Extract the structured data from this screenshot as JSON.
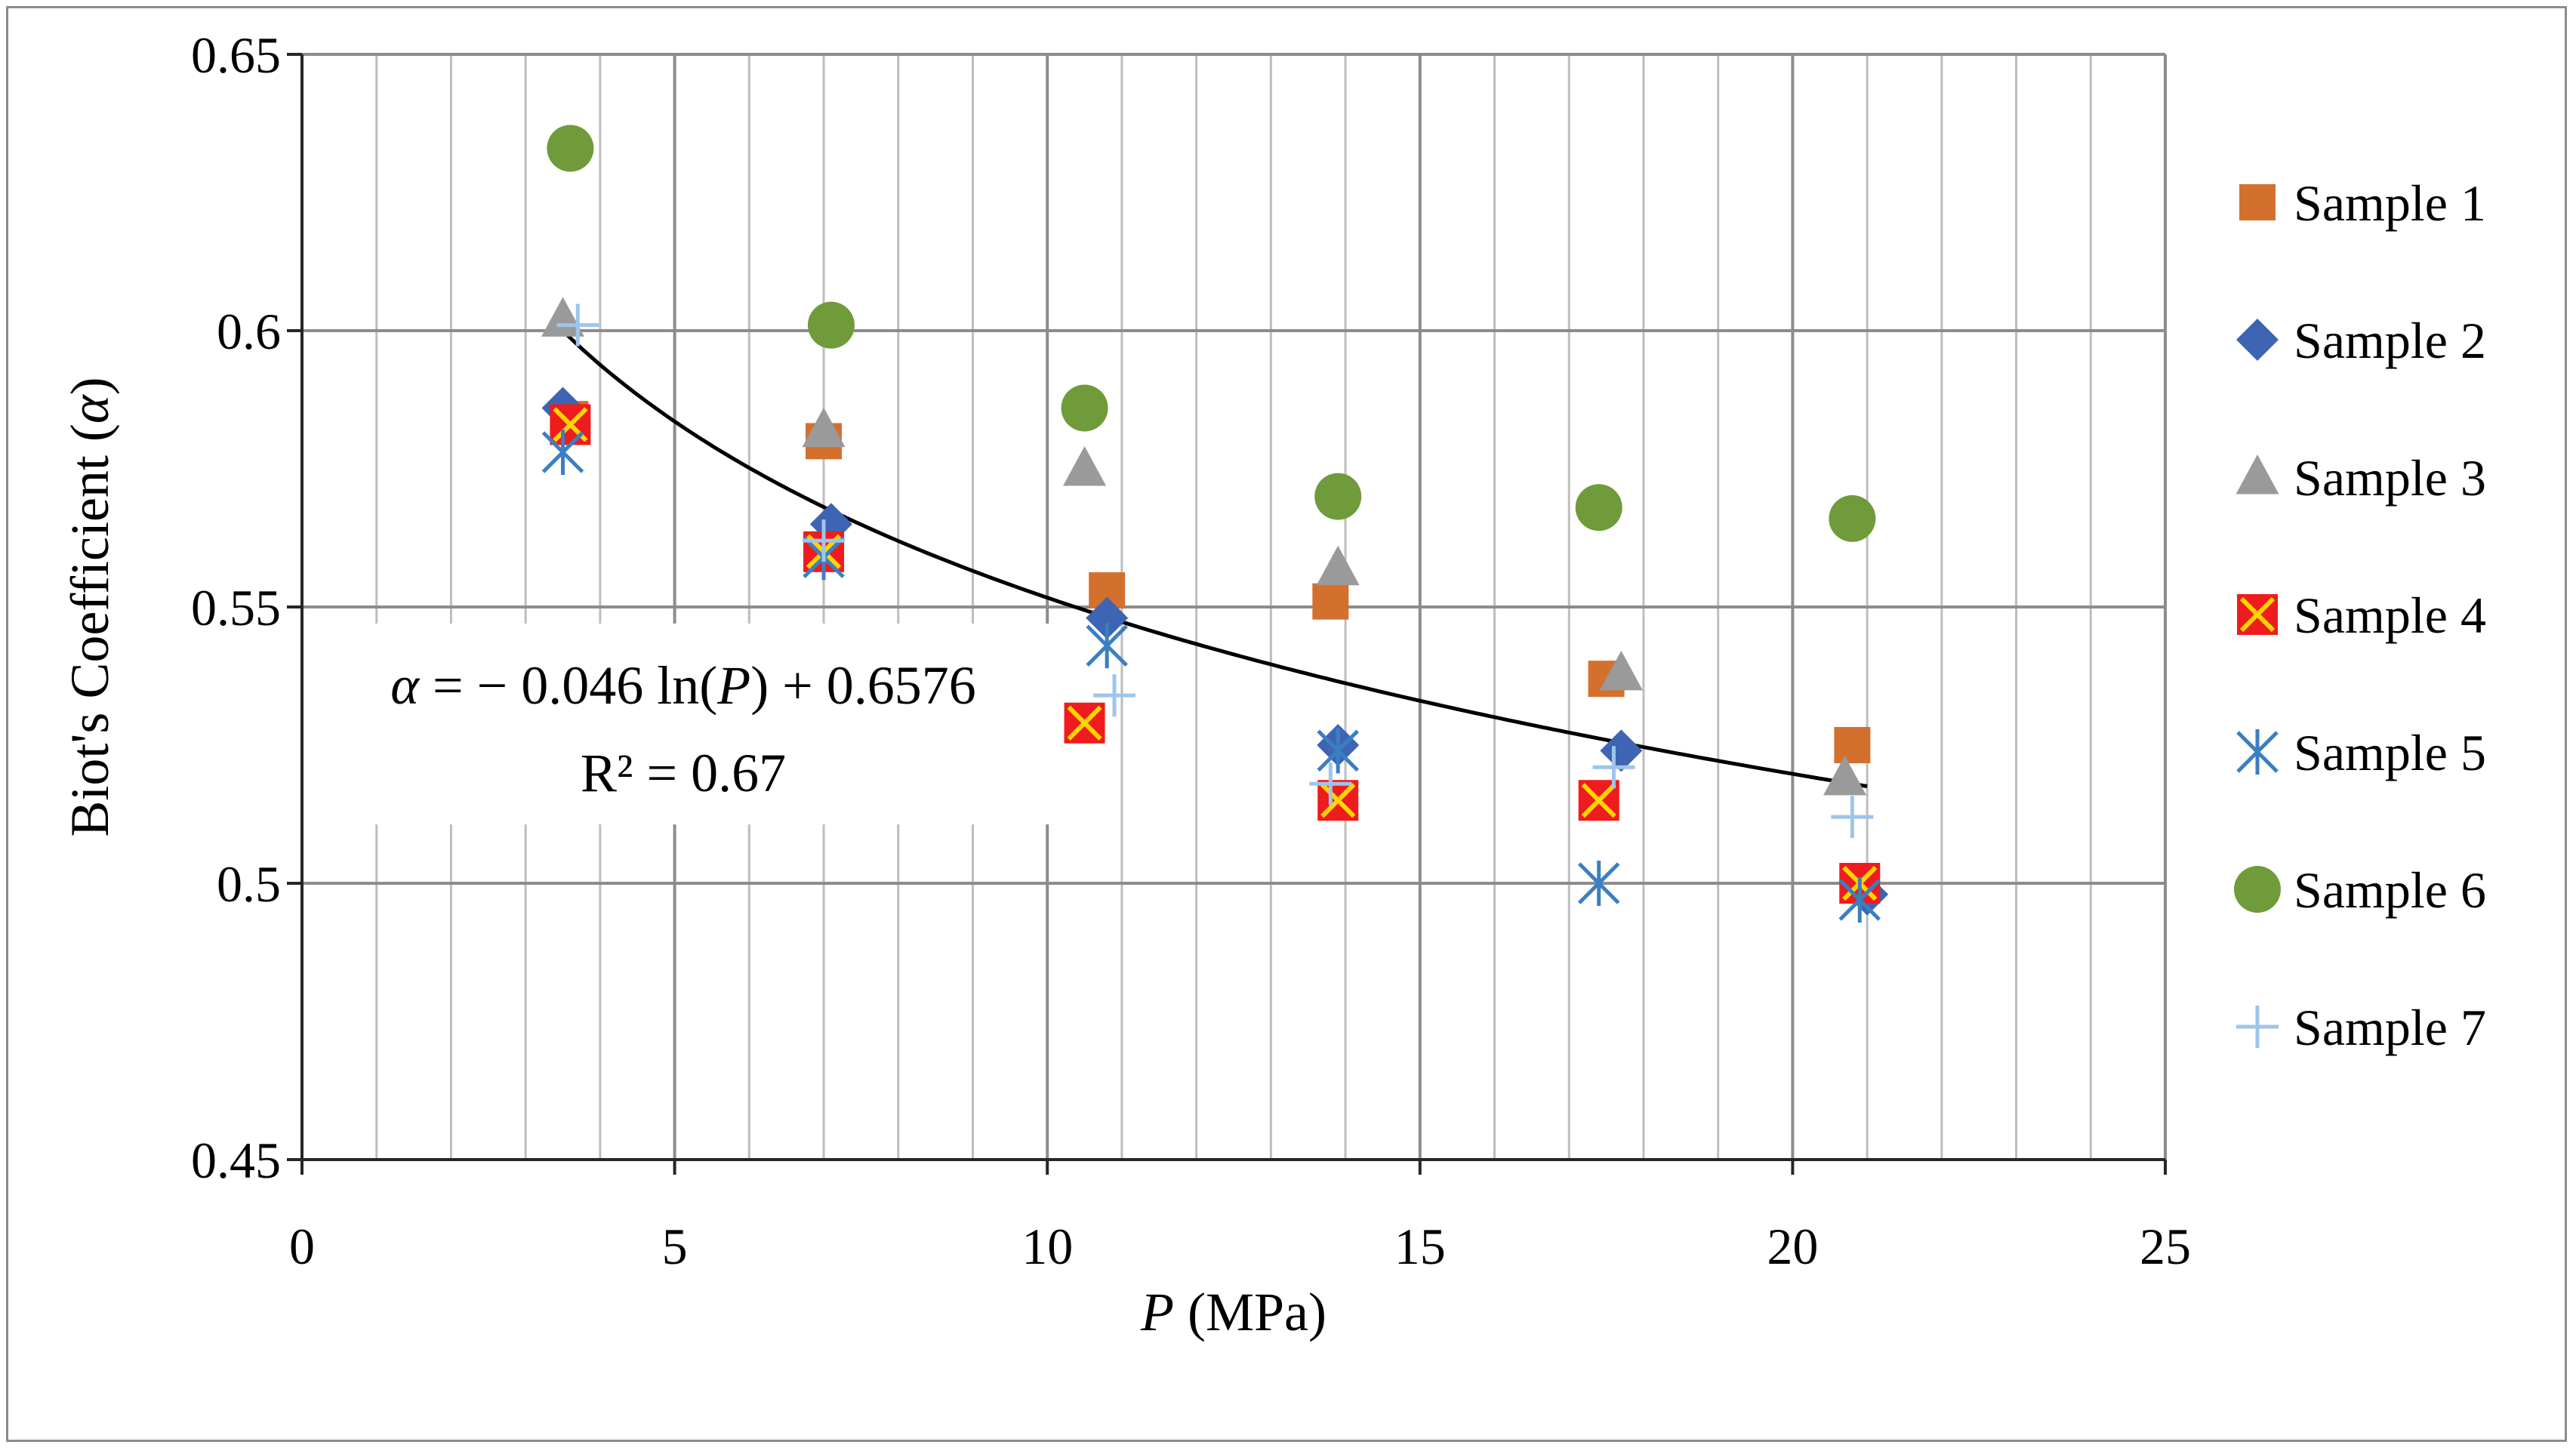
{
  "chart_data": {
    "type": "scatter",
    "title": "",
    "xlabel": "P (MPa)",
    "xlabel_italic": "P",
    "xlabel_rest": " (MPa)",
    "ylabel": "Biot's Coefficient (α)",
    "ylabel_main": "Biot's Coefficient (",
    "ylabel_symbol": "α",
    "ylabel_close": ")",
    "xlim": [
      0,
      25
    ],
    "ylim": [
      0.45,
      0.65
    ],
    "x_major_ticks": [
      0,
      5,
      10,
      15,
      20,
      25
    ],
    "x_tick_labels": [
      "0",
      "5",
      "10",
      "15",
      "20",
      "25"
    ],
    "x_minor_step": 1,
    "y_ticks": [
      0.45,
      0.5,
      0.55,
      0.6,
      0.65
    ],
    "y_tick_labels": [
      "0.45",
      "0.5",
      "0.55",
      "0.6",
      "0.65"
    ],
    "grid": true,
    "legend_position": "right",
    "series": [
      {
        "name": "Sample 1",
        "marker": "square",
        "color": "#d4702e",
        "points": [
          [
            3.6,
            0.584
          ],
          [
            7.0,
            0.58
          ],
          [
            10.8,
            0.553
          ],
          [
            13.8,
            0.551
          ],
          [
            17.5,
            0.537
          ],
          [
            20.8,
            0.525
          ]
        ]
      },
      {
        "name": "Sample 2",
        "marker": "diamond",
        "color": "#3e64b4",
        "points": [
          [
            3.5,
            0.586
          ],
          [
            7.1,
            0.565
          ],
          [
            10.8,
            0.548
          ],
          [
            13.9,
            0.525
          ],
          [
            17.7,
            0.524
          ],
          [
            21.0,
            0.498
          ]
        ]
      },
      {
        "name": "Sample 3",
        "marker": "triangle",
        "color": "#9a9a9a",
        "points": [
          [
            3.5,
            0.602
          ],
          [
            7.0,
            0.582
          ],
          [
            10.5,
            0.575
          ],
          [
            13.9,
            0.557
          ],
          [
            17.7,
            0.538
          ],
          [
            20.7,
            0.519
          ]
        ]
      },
      {
        "name": "Sample 4",
        "marker": "x-square",
        "color": "#ee1c1c",
        "points": [
          [
            3.6,
            0.583
          ],
          [
            7.0,
            0.56
          ],
          [
            10.5,
            0.529
          ],
          [
            13.9,
            0.515
          ],
          [
            17.4,
            0.515
          ],
          [
            20.9,
            0.5
          ]
        ]
      },
      {
        "name": "Sample 5",
        "marker": "asterisk",
        "color": "#3a7fc1",
        "points": [
          [
            3.5,
            0.578
          ],
          [
            7.0,
            0.559
          ],
          [
            10.8,
            0.543
          ],
          [
            13.9,
            0.524
          ],
          [
            17.4,
            0.5
          ],
          [
            20.9,
            0.497
          ]
        ]
      },
      {
        "name": "Sample 6",
        "marker": "circle",
        "color": "#6f9b3a",
        "points": [
          [
            3.6,
            0.633
          ],
          [
            7.1,
            0.601
          ],
          [
            10.5,
            0.586
          ],
          [
            13.9,
            0.57
          ],
          [
            17.4,
            0.568
          ],
          [
            20.8,
            0.566
          ]
        ]
      },
      {
        "name": "Sample 7",
        "marker": "plus",
        "color": "#9ec5eb",
        "points": [
          [
            3.7,
            0.601
          ],
          [
            7.0,
            0.562
          ],
          [
            10.9,
            0.534
          ],
          [
            13.8,
            0.518
          ],
          [
            17.6,
            0.521
          ],
          [
            20.8,
            0.512
          ]
        ]
      }
    ],
    "trendline": {
      "type": "logarithmic",
      "a": -0.046,
      "b": 0.6576,
      "x_range": [
        3.5,
        21.0
      ],
      "color": "#000000",
      "equation_label": "α = − 0.046 ln(P) + 0.6576",
      "equation_parts": {
        "alpha": "α",
        "mid": " = − 0.046 ln(",
        "p": "P",
        "end": ") + 0.6576"
      },
      "r2_label": "R² = 0.67"
    }
  }
}
